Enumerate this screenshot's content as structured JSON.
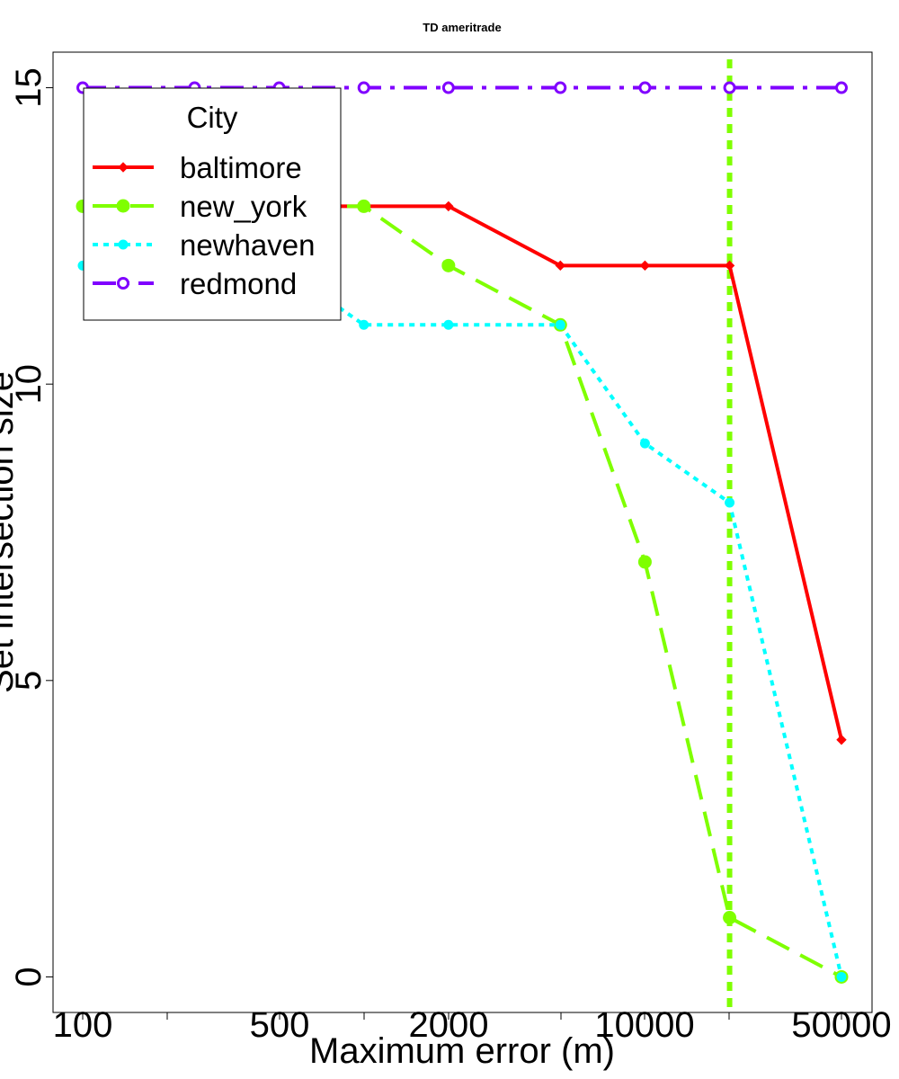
{
  "chart_data": {
    "type": "line",
    "title": "TD ameritrade",
    "xlabel": "Maximum error (m)",
    "ylabel": "Set intersection size",
    "x_scale": "log",
    "x": [
      100,
      250,
      500,
      1000,
      2000,
      5000,
      10000,
      20000,
      50000
    ],
    "x_tick_labels": [
      "100",
      "500",
      "2000",
      "10000",
      "50000"
    ],
    "y_ticks": [
      0,
      5,
      10,
      15
    ],
    "ylim": [
      -0.6,
      15.6
    ],
    "legend": {
      "title": "City",
      "position": "top-left"
    },
    "grid": false,
    "vline": {
      "x": 20000,
      "color": "#7FFF00",
      "style": "dotted"
    },
    "series": [
      {
        "name": "baltimore",
        "color": "#FF0000",
        "line": "solid",
        "marker": "diamond",
        "values": [
          13,
          13,
          13,
          13,
          13,
          12,
          12,
          12,
          4
        ]
      },
      {
        "name": "new_york",
        "color": "#7FFF00",
        "line": "dashed",
        "marker": "filled-circle",
        "values": [
          13,
          13,
          13,
          13,
          12,
          11,
          7,
          1,
          0
        ]
      },
      {
        "name": "newhaven",
        "color": "#00FFFF",
        "line": "dotted",
        "marker": "small-circle",
        "values": [
          12,
          12,
          12,
          11,
          11,
          11,
          9,
          8,
          0
        ]
      },
      {
        "name": "redmond",
        "color": "#8000FF",
        "line": "dashdot",
        "marker": "open-circle",
        "values": [
          15,
          15,
          15,
          15,
          15,
          15,
          15,
          15,
          15
        ]
      }
    ]
  }
}
